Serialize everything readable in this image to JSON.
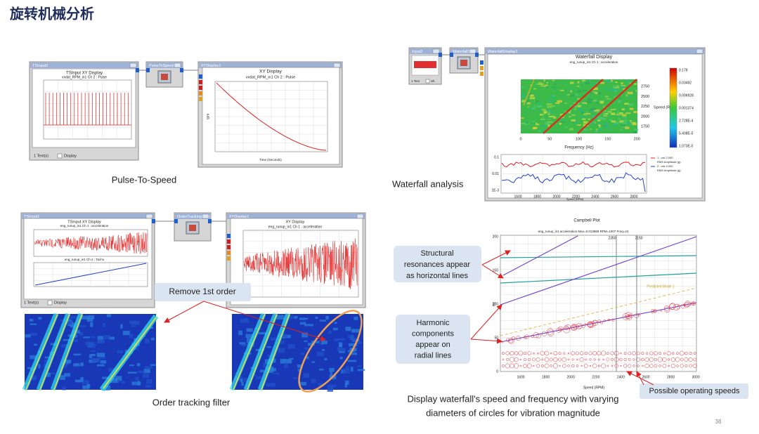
{
  "title": "旋转机械分析",
  "page_number": "38",
  "pulse_to_speed": {
    "caption": "Pulse-To-Speed",
    "input_window": {
      "title": "TSInput2",
      "plot_title": "TSInput XY Display",
      "plot_subtitle": "vxdat_RPM_in1  Ch 2 : Pulse",
      "footer": [
        "1 Text(s)",
        "Display"
      ]
    },
    "block": {
      "title": "PulseToSpeed1"
    },
    "display_window": {
      "title": "XYDisplay1",
      "plot_title": "XY Display",
      "plot_subtitle": "vxdat_RPM_in1  Ch 2 : Pulse",
      "x_label": "Time (Seconds)",
      "y_label": "rpm"
    }
  },
  "waterfall": {
    "caption": "Waterfall analysis",
    "input_window": {
      "title": "Input2",
      "footer": [
        "1 Text",
        "Sh"
      ]
    },
    "block": {
      "title": "Waterfall1"
    },
    "display_window": {
      "title": "WaterfallDisplay1",
      "plot_title": "Waterfall Display",
      "plot_subtitle": "eng_runup_in1  Ch 1 : acceleration",
      "x_label": "Frequency (Hz)",
      "y_label": "Speed (R",
      "yticks": [
        "2750",
        "2500",
        "2250",
        "2000",
        "1750"
      ],
      "xticks": [
        "0",
        "50",
        "100",
        "150",
        "200"
      ],
      "colorbar": [
        "0.178",
        "0.03492",
        "0.006928",
        "0.001374",
        "2.728E-4",
        "5.408E-5",
        "1.073E-5"
      ],
      "lower_yticks": [
        "0.1",
        "0.01",
        "1E-3"
      ],
      "lower_xticks": [
        "1600",
        "1800",
        "2000",
        "2200",
        "2400",
        "2600",
        "2800"
      ],
      "lower_x_label": "Speed (RPM)",
      "legend": [
        "1 : ord 2.000",
        "RMS Amplitude (g)",
        "2 : ord 4.000",
        "RMS Amplitude (g)"
      ]
    }
  },
  "order_tracking": {
    "caption": "Order tracking filter",
    "callout": "Remove 1st order",
    "input_window": {
      "title": "TSInput1",
      "plot_title": "TSInput XY Display",
      "plot_subtitle": "eng_runup_in1  Ch 1 : acceleration",
      "lower_subtitle": "eng_runup_in1  Ch 2 : Tacho",
      "footer": [
        "1 Text(s)",
        "Display"
      ]
    },
    "block": {
      "title": "OrderTrackingFilter1"
    },
    "display_window": {
      "title": "XYDisplay1",
      "plot_title": "XY Display",
      "plot_subtitle": "eng_runup_in1  Ch 1 : acceleration"
    }
  },
  "campbell": {
    "title": "Campbell Plot",
    "subtitle": "eng_runup_in1  acceleration  Max=0.013968  RPM=1007  Freq=24",
    "x_label": "Speed (RPM)",
    "y_label": "Hz",
    "xticks": [
      "1600",
      "1800",
      "2000",
      "2200",
      "2400",
      "2600",
      "2800",
      "3000"
    ],
    "yticks": [
      "200",
      "150",
      "100",
      "50",
      "0"
    ],
    "markers": [
      "2350",
      "2150"
    ],
    "annotation": "Predicted Mode 1",
    "callout_resonance": [
      "Structural",
      "resonances appear",
      "as horizontal lines"
    ],
    "callout_harmonic": [
      "Harmonic",
      "components",
      "appear on",
      "radial lines"
    ],
    "callout_speeds": "Possible operating speeds",
    "caption": [
      "Display waterfall's speed and frequency with varying",
      "diameters of circles for vibration magnitude"
    ]
  }
}
